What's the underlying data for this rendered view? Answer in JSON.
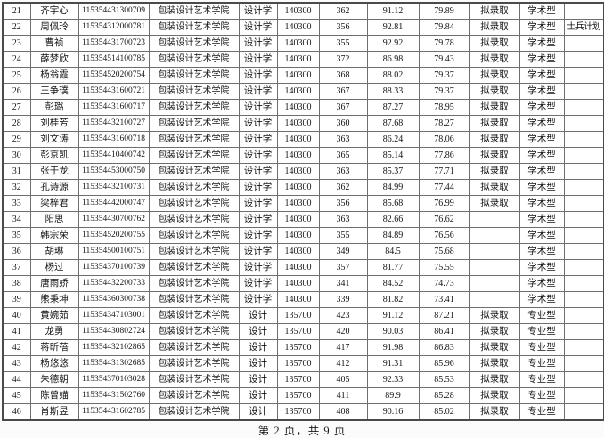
{
  "page": {
    "footer": "第 2 页，共 9 页"
  },
  "table": {
    "col_keys": [
      "no",
      "name",
      "id",
      "college",
      "major",
      "code",
      "score1",
      "score2",
      "score3",
      "status",
      "type",
      "note"
    ],
    "rows": [
      {
        "no": "21",
        "name": "齐宇心",
        "id": "115354431300709",
        "college": "包装设计艺术学院",
        "major": "设计学",
        "code": "140300",
        "score1": "362",
        "score2": "91.12",
        "score3": "79.89",
        "status": "拟录取",
        "type": "学术型",
        "note": ""
      },
      {
        "no": "22",
        "name": "周佩玲",
        "id": "115354312000781",
        "college": "包装设计艺术学院",
        "major": "设计学",
        "code": "140300",
        "score1": "356",
        "score2": "92.81",
        "score3": "79.84",
        "status": "拟录取",
        "type": "学术型",
        "note": "士兵计划"
      },
      {
        "no": "23",
        "name": "曹祯",
        "id": "115354431700723",
        "college": "包装设计艺术学院",
        "major": "设计学",
        "code": "140300",
        "score1": "355",
        "score2": "92.92",
        "score3": "79.78",
        "status": "拟录取",
        "type": "学术型",
        "note": ""
      },
      {
        "no": "24",
        "name": "薛梦欣",
        "id": "115354514100785",
        "college": "包装设计艺术学院",
        "major": "设计学",
        "code": "140300",
        "score1": "372",
        "score2": "86.98",
        "score3": "79.43",
        "status": "拟录取",
        "type": "学术型",
        "note": ""
      },
      {
        "no": "25",
        "name": "杨翁霞",
        "id": "115354520200754",
        "college": "包装设计艺术学院",
        "major": "设计学",
        "code": "140300",
        "score1": "368",
        "score2": "88.02",
        "score3": "79.37",
        "status": "拟录取",
        "type": "学术型",
        "note": ""
      },
      {
        "no": "26",
        "name": "王争璞",
        "id": "115354431600721",
        "college": "包装设计艺术学院",
        "major": "设计学",
        "code": "140300",
        "score1": "367",
        "score2": "88.33",
        "score3": "79.37",
        "status": "拟录取",
        "type": "学术型",
        "note": ""
      },
      {
        "no": "27",
        "name": "彭璐",
        "id": "115354431600717",
        "college": "包装设计艺术学院",
        "major": "设计学",
        "code": "140300",
        "score1": "367",
        "score2": "87.27",
        "score3": "78.95",
        "status": "拟录取",
        "type": "学术型",
        "note": ""
      },
      {
        "no": "28",
        "name": "刘桂芳",
        "id": "115354432100727",
        "college": "包装设计艺术学院",
        "major": "设计学",
        "code": "140300",
        "score1": "360",
        "score2": "87.68",
        "score3": "78.27",
        "status": "拟录取",
        "type": "学术型",
        "note": ""
      },
      {
        "no": "29",
        "name": "刘文涛",
        "id": "115354431600718",
        "college": "包装设计艺术学院",
        "major": "设计学",
        "code": "140300",
        "score1": "363",
        "score2": "86.24",
        "score3": "78.06",
        "status": "拟录取",
        "type": "学术型",
        "note": ""
      },
      {
        "no": "30",
        "name": "彭京凯",
        "id": "115354410400742",
        "college": "包装设计艺术学院",
        "major": "设计学",
        "code": "140300",
        "score1": "365",
        "score2": "85.14",
        "score3": "77.86",
        "status": "拟录取",
        "type": "学术型",
        "note": ""
      },
      {
        "no": "31",
        "name": "张于龙",
        "id": "115354453000750",
        "college": "包装设计艺术学院",
        "major": "设计学",
        "code": "140300",
        "score1": "363",
        "score2": "85.37",
        "score3": "77.71",
        "status": "拟录取",
        "type": "学术型",
        "note": ""
      },
      {
        "no": "32",
        "name": "孔诗源",
        "id": "115354432100731",
        "college": "包装设计艺术学院",
        "major": "设计学",
        "code": "140300",
        "score1": "362",
        "score2": "84.99",
        "score3": "77.44",
        "status": "拟录取",
        "type": "学术型",
        "note": ""
      },
      {
        "no": "33",
        "name": "梁梓君",
        "id": "115354442000747",
        "college": "包装设计艺术学院",
        "major": "设计学",
        "code": "140300",
        "score1": "356",
        "score2": "85.68",
        "score3": "76.99",
        "status": "拟录取",
        "type": "学术型",
        "note": ""
      },
      {
        "no": "34",
        "name": "阳思",
        "id": "115354430700762",
        "college": "包装设计艺术学院",
        "major": "设计学",
        "code": "140300",
        "score1": "363",
        "score2": "82.66",
        "score3": "76.62",
        "status": "",
        "type": "学术型",
        "note": ""
      },
      {
        "no": "35",
        "name": "韩宗荣",
        "id": "115354520200755",
        "college": "包装设计艺术学院",
        "major": "设计学",
        "code": "140300",
        "score1": "355",
        "score2": "84.89",
        "score3": "76.56",
        "status": "",
        "type": "学术型",
        "note": ""
      },
      {
        "no": "36",
        "name": "胡琳",
        "id": "115354500100751",
        "college": "包装设计艺术学院",
        "major": "设计学",
        "code": "140300",
        "score1": "349",
        "score2": "84.5",
        "score3": "75.68",
        "status": "",
        "type": "学术型",
        "note": ""
      },
      {
        "no": "37",
        "name": "杨过",
        "id": "115354370100739",
        "college": "包装设计艺术学院",
        "major": "设计学",
        "code": "140300",
        "score1": "357",
        "score2": "81.77",
        "score3": "75.55",
        "status": "",
        "type": "学术型",
        "note": ""
      },
      {
        "no": "38",
        "name": "唐雨娇",
        "id": "115354432200733",
        "college": "包装设计艺术学院",
        "major": "设计学",
        "code": "140300",
        "score1": "341",
        "score2": "84.52",
        "score3": "74.73",
        "status": "",
        "type": "学术型",
        "note": ""
      },
      {
        "no": "39",
        "name": "熊秉坤",
        "id": "115354360300738",
        "college": "包装设计艺术学院",
        "major": "设计学",
        "code": "140300",
        "score1": "339",
        "score2": "81.82",
        "score3": "73.41",
        "status": "",
        "type": "学术型",
        "note": ""
      },
      {
        "no": "40",
        "name": "黄婉茹",
        "id": "115354347103001",
        "college": "包装设计艺术学院",
        "major": "设计",
        "code": "135700",
        "score1": "423",
        "score2": "91.12",
        "score3": "87.21",
        "status": "拟录取",
        "type": "专业型",
        "note": ""
      },
      {
        "no": "41",
        "name": "龙勇",
        "id": "115354430802724",
        "college": "包装设计艺术学院",
        "major": "设计",
        "code": "135700",
        "score1": "420",
        "score2": "90.03",
        "score3": "86.41",
        "status": "拟录取",
        "type": "专业型",
        "note": ""
      },
      {
        "no": "42",
        "name": "蒋昕蓓",
        "id": "115354432102865",
        "college": "包装设计艺术学院",
        "major": "设计",
        "code": "135700",
        "score1": "417",
        "score2": "91.98",
        "score3": "86.83",
        "status": "拟录取",
        "type": "专业型",
        "note": ""
      },
      {
        "no": "43",
        "name": "杨悠悠",
        "id": "115354431302685",
        "college": "包装设计艺术学院",
        "major": "设计",
        "code": "135700",
        "score1": "412",
        "score2": "91.31",
        "score3": "85.96",
        "status": "拟录取",
        "type": "专业型",
        "note": ""
      },
      {
        "no": "44",
        "name": "朱德朝",
        "id": "115354370103028",
        "college": "包装设计艺术学院",
        "major": "设计",
        "code": "135700",
        "score1": "405",
        "score2": "92.33",
        "score3": "85.53",
        "status": "拟录取",
        "type": "专业型",
        "note": ""
      },
      {
        "no": "45",
        "name": "陈曾媌",
        "id": "115354431502760",
        "college": "包装设计艺术学院",
        "major": "设计",
        "code": "135700",
        "score1": "411",
        "score2": "89.9",
        "score3": "85.28",
        "status": "拟录取",
        "type": "专业型",
        "note": ""
      },
      {
        "no": "46",
        "name": "肖斯昱",
        "id": "115354431602785",
        "college": "包装设计艺术学院",
        "major": "设计",
        "code": "135700",
        "score1": "408",
        "score2": "90.16",
        "score3": "85.02",
        "status": "拟录取",
        "type": "专业型",
        "note": ""
      }
    ]
  }
}
